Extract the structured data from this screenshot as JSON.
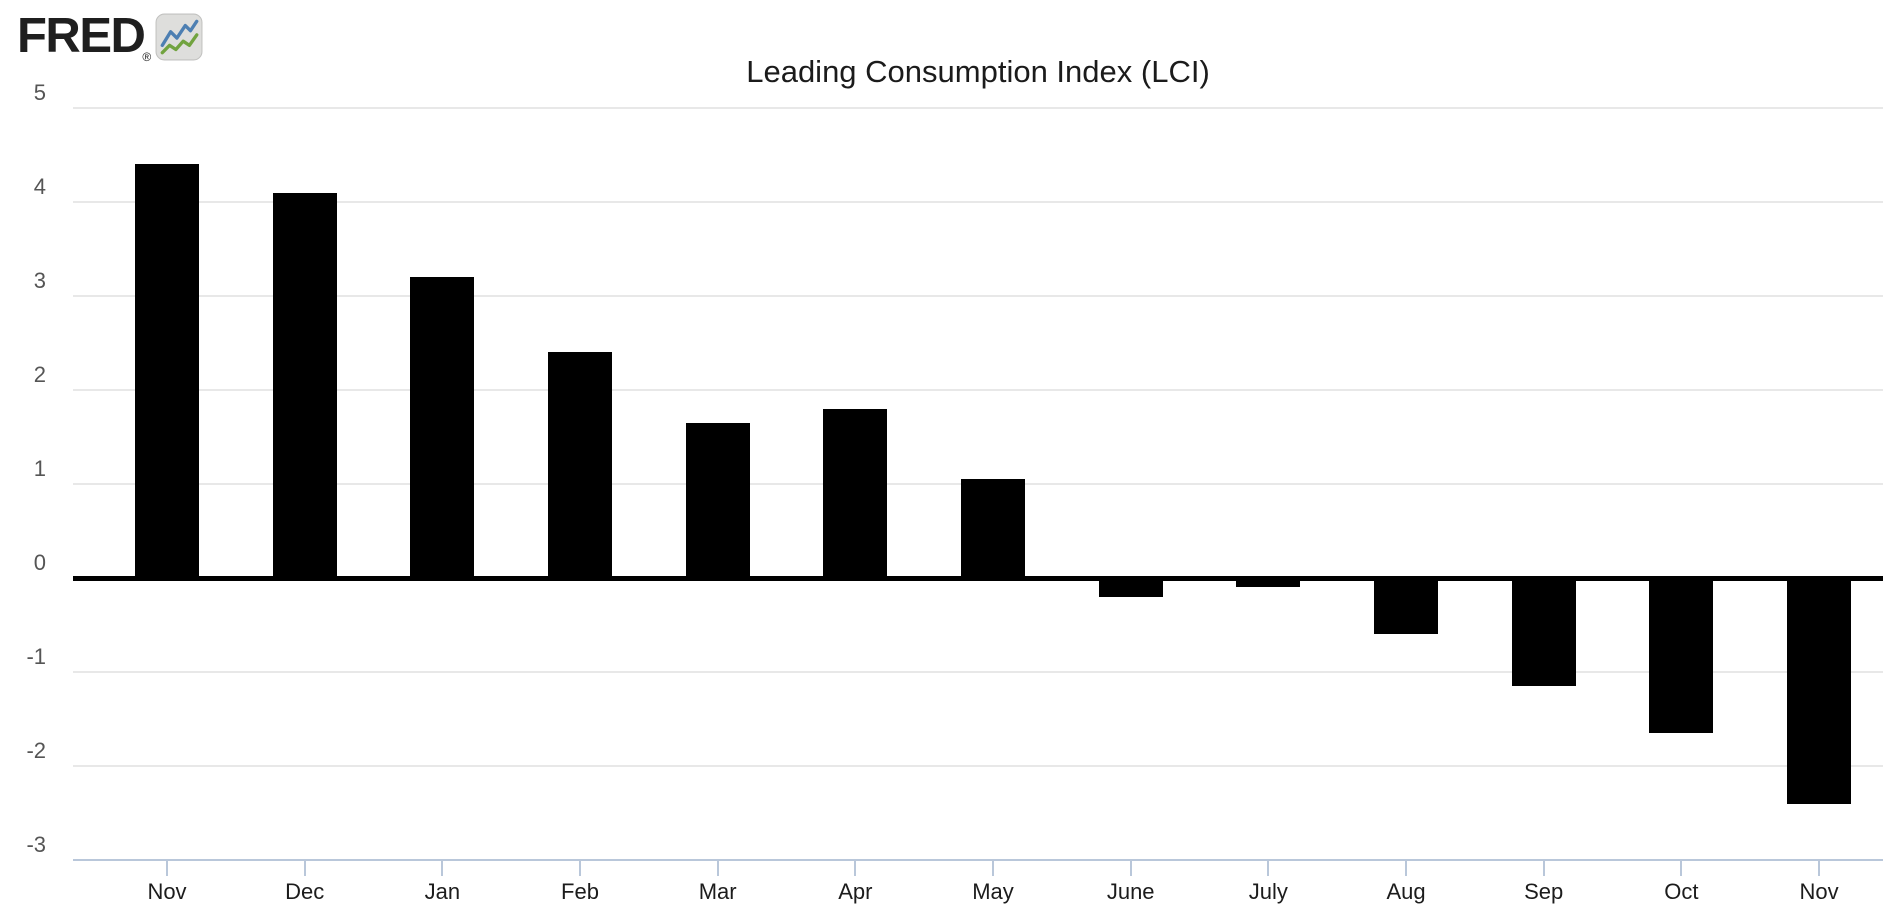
{
  "header": {
    "logo_text": "FRED",
    "logo_registered": "®"
  },
  "chart_data": {
    "type": "bar",
    "title": "Leading Consumption Index (LCI)",
    "categories": [
      "Nov",
      "Dec",
      "Jan",
      "Feb",
      "Mar",
      "Apr",
      "May",
      "June",
      "July",
      "Aug",
      "Sep",
      "Oct",
      "Nov"
    ],
    "values": [
      4.4,
      4.1,
      3.2,
      2.4,
      1.65,
      1.8,
      1.05,
      -0.2,
      -0.1,
      -0.6,
      -1.15,
      -1.65,
      -2.4
    ],
    "ylim": [
      -3,
      5
    ],
    "yticks": [
      5,
      4,
      3,
      2,
      1,
      0,
      -1,
      -2,
      -3
    ],
    "xlabel": "",
    "ylabel": "",
    "grid": true,
    "legend": "none",
    "bar_color": "#000000",
    "zero_line_color": "#000000",
    "gridline_color": "#e8e8e8",
    "axis_line_color": "#b9c7da",
    "tick_color": "#b9c7da",
    "ytick_label_color": "#555555",
    "xtick_label_color": "#1c1c1c",
    "title_color": "#1b1b1b",
    "logo_icon_colors": {
      "background": "#dededc",
      "border": "#c2c2c0",
      "blue_line": "#4d7fb2",
      "green_line": "#71a33f"
    }
  }
}
